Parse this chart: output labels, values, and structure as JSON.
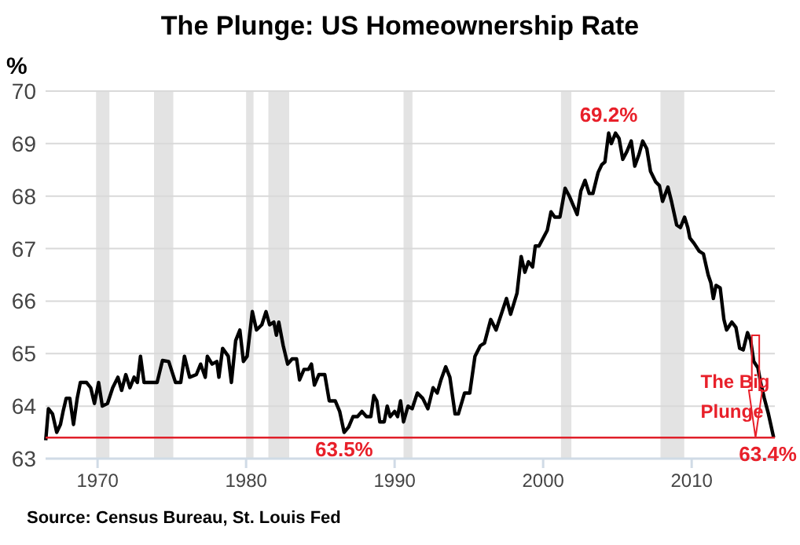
{
  "chart_data": {
    "type": "line",
    "title": "The Plunge: US Homeownership Rate",
    "ylabel": "%",
    "xlim": [
      1966.5,
      2015.6
    ],
    "xticks": [
      1970,
      1980,
      1990,
      2000,
      2010
    ],
    "ylim": [
      63,
      70
    ],
    "yticks": [
      63,
      64,
      65,
      66,
      67,
      68,
      69,
      70
    ],
    "grid": "y",
    "marker": "none",
    "line_style": "solid",
    "x": [
      1966.51,
      1966.69,
      1966.97,
      1967.25,
      1967.5,
      1967.68,
      1967.89,
      1968.13,
      1968.38,
      1968.63,
      1968.84,
      1969.26,
      1969.54,
      1969.79,
      1970.07,
      1970.32,
      1970.67,
      1971.02,
      1971.37,
      1971.62,
      1971.9,
      1972.18,
      1972.46,
      1972.68,
      1972.89,
      1973.13,
      1974.01,
      1974.37,
      1974.79,
      1975.25,
      1975.6,
      1975.85,
      1976.2,
      1976.65,
      1976.94,
      1977.25,
      1977.39,
      1977.71,
      1978.03,
      1978.17,
      1978.42,
      1978.8,
      1979.01,
      1979.3,
      1979.58,
      1979.82,
      1980.07,
      1980.42,
      1980.7,
      1981.06,
      1981.34,
      1981.58,
      1981.87,
      1982.04,
      1982.2,
      1982.5,
      1982.8,
      1983.1,
      1983.4,
      1983.6,
      1983.9,
      1984.2,
      1984.4,
      1984.6,
      1984.9,
      1985.3,
      1985.6,
      1986.0,
      1986.3,
      1986.6,
      1986.9,
      1987.2,
      1987.5,
      1987.8,
      1988.1,
      1988.4,
      1988.6,
      1988.8,
      1989.0,
      1989.3,
      1989.5,
      1989.7,
      1990.0,
      1990.2,
      1990.4,
      1990.6,
      1990.9,
      1991.18,
      1991.53,
      1991.89,
      1992.24,
      1992.59,
      1992.87,
      1993.12,
      1993.44,
      1993.72,
      1994.07,
      1994.29,
      1994.71,
      1995.06,
      1995.41,
      1995.77,
      1996.05,
      1996.47,
      1996.83,
      1997.53,
      1997.81,
      1998.24,
      1998.52,
      1998.77,
      1999.01,
      1999.29,
      1999.47,
      1999.72,
      2000.0,
      2000.28,
      2000.53,
      2000.78,
      2001.13,
      2001.48,
      2001.76,
      2002.29,
      2002.54,
      2002.82,
      2003.1,
      2003.35,
      2003.7,
      2003.95,
      2004.16,
      2004.41,
      2004.59,
      2004.87,
      2005.11,
      2005.36,
      2005.64,
      2005.93,
      2006.17,
      2006.46,
      2006.7,
      2006.98,
      2007.23,
      2007.58,
      2007.83,
      2008.04,
      2008.4,
      2008.64,
      2008.99,
      2009.24,
      2009.52,
      2009.74,
      2009.88,
      2010.16,
      2010.51,
      2010.79,
      2011.11,
      2011.29,
      2011.46,
      2011.64,
      2011.92,
      2012.17,
      2012.35,
      2012.7,
      2012.98,
      2013.23,
      2013.47,
      2013.76,
      2013.97,
      2014.18,
      2014.46,
      2014.64,
      2014.89,
      2015.17,
      2015.52
    ],
    "series": [
      {
        "color": "#000000",
        "values": [
          63.35,
          63.95,
          63.85,
          63.5,
          63.65,
          63.9,
          64.15,
          64.15,
          63.65,
          64.15,
          64.45,
          64.45,
          64.35,
          64.05,
          64.45,
          64.0,
          64.05,
          64.35,
          64.55,
          64.3,
          64.6,
          64.35,
          64.55,
          64.45,
          64.95,
          64.45,
          64.45,
          64.87,
          64.85,
          64.45,
          64.45,
          64.95,
          64.55,
          64.6,
          64.8,
          64.55,
          64.95,
          64.8,
          64.85,
          64.55,
          65.1,
          64.95,
          64.45,
          65.25,
          65.45,
          64.85,
          64.95,
          65.8,
          65.45,
          65.55,
          65.8,
          65.55,
          65.6,
          65.35,
          65.6,
          65.15,
          64.8,
          64.9,
          64.9,
          64.5,
          64.7,
          64.7,
          64.8,
          64.4,
          64.6,
          64.6,
          64.1,
          64.1,
          63.9,
          63.5,
          63.6,
          63.8,
          63.8,
          63.9,
          63.8,
          63.8,
          64.2,
          64.1,
          63.7,
          63.7,
          64.0,
          63.8,
          63.9,
          63.8,
          64.1,
          63.7,
          64.0,
          63.95,
          64.25,
          64.15,
          63.95,
          64.35,
          64.25,
          64.5,
          64.75,
          64.55,
          63.85,
          63.85,
          64.25,
          64.25,
          64.95,
          65.15,
          65.2,
          65.65,
          65.45,
          66.05,
          65.75,
          66.15,
          66.85,
          66.55,
          66.75,
          66.65,
          67.05,
          67.05,
          67.2,
          67.35,
          67.7,
          67.6,
          67.6,
          68.15,
          68.0,
          67.65,
          68.1,
          68.3,
          68.05,
          68.05,
          68.45,
          68.6,
          68.65,
          69.2,
          69.0,
          69.2,
          69.1,
          68.7,
          68.85,
          69.05,
          68.57,
          68.8,
          69.05,
          68.9,
          68.47,
          68.27,
          68.2,
          67.9,
          68.17,
          67.9,
          67.45,
          67.4,
          67.6,
          67.4,
          67.2,
          67.1,
          66.95,
          66.9,
          66.5,
          66.35,
          66.05,
          66.3,
          66.25,
          65.65,
          65.45,
          65.6,
          65.5,
          65.1,
          65.07,
          65.4,
          65.25,
          64.85,
          64.73,
          64.45,
          64.15,
          63.85,
          63.4
        ]
      }
    ],
    "bands": [
      {
        "axis": "x",
        "from": 1969.9,
        "to": 1970.8,
        "color": "#e3e3e3"
      },
      {
        "axis": "x",
        "from": 1973.8,
        "to": 1975.1,
        "color": "#e3e3e3"
      },
      {
        "axis": "x",
        "from": 1980.0,
        "to": 1980.5,
        "color": "#e3e3e3"
      },
      {
        "axis": "x",
        "from": 1981.5,
        "to": 1982.9,
        "color": "#e3e3e3"
      },
      {
        "axis": "x",
        "from": 1990.6,
        "to": 1991.2,
        "color": "#e3e3e3"
      },
      {
        "axis": "x",
        "from": 2001.2,
        "to": 2001.9,
        "color": "#e3e3e3"
      },
      {
        "axis": "x",
        "from": 2007.9,
        "to": 2009.5,
        "color": "#e3e3e3"
      }
    ],
    "ref_lines": [
      {
        "axis": "y",
        "value": 63.4,
        "color": "#e0202a"
      }
    ],
    "annotations": [
      {
        "text": "69.2%",
        "x": 2004.41,
        "y": 69.2
      },
      {
        "text": "63.5%",
        "x": 1986.6,
        "y": 63.5
      },
      {
        "text": "63.4%",
        "x": 2015.52,
        "y": 63.4
      },
      "The Big Plunge",
      "Source: Census Bureau, St. Louis Fed"
    ]
  }
}
